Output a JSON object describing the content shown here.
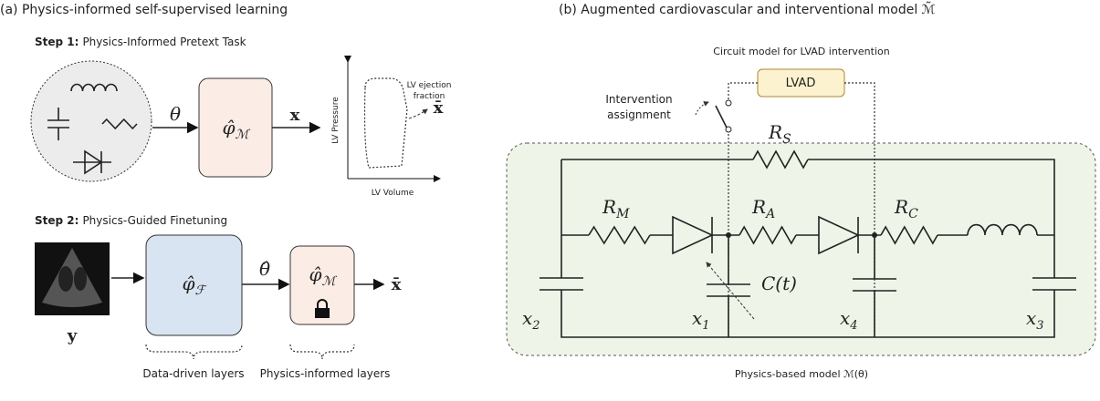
{
  "panel_a": {
    "title": "(a) Physics-informed self-supervised learning",
    "step1": {
      "label": "Step 1:",
      "text": "Physics-Informed Pretext Task"
    },
    "theta": "θ",
    "phi_m": {
      "base": "φ̂",
      "sub": "ℳ"
    },
    "x": "x",
    "plot": {
      "y_label": "LV Pressure",
      "x_label": "LV Volume",
      "note_line1": "LV ejection",
      "note_line2": "fraction",
      "x_bar": "x̄"
    },
    "step2": {
      "label": "Step 2:",
      "text": "Physics-Guided Finetuning"
    },
    "y": "y",
    "phi_f": {
      "base": "φ̂",
      "sub": "ℱ"
    },
    "theta_hat": "θ̂",
    "phi_m2": {
      "base": "φ̂",
      "sub": "ℳ"
    },
    "x_bar": "x̄",
    "brace_left": "Data-driven layers",
    "brace_right": "Physics-informed layers"
  },
  "panel_b": {
    "title": "(b) Augmented cardiovascular and interventional model ℳ̃",
    "circuit_title": "Circuit model for LVAD intervention",
    "lvad": "LVAD",
    "switch_line1": "Intervention",
    "switch_line2": "assignment",
    "r_s": {
      "base": "R",
      "sub": "S"
    },
    "r_m": {
      "base": "R",
      "sub": "M"
    },
    "r_a": {
      "base": "R",
      "sub": "A"
    },
    "r_c": {
      "base": "R",
      "sub": "C"
    },
    "c_t": "C(t)",
    "x2": {
      "base": "x",
      "sub": "2"
    },
    "x1": {
      "base": "x",
      "sub": "1"
    },
    "x4": {
      "base": "x",
      "sub": "4"
    },
    "x3": {
      "base": "x",
      "sub": "3"
    },
    "caption": "Physics-based model ℳ(θ)"
  }
}
